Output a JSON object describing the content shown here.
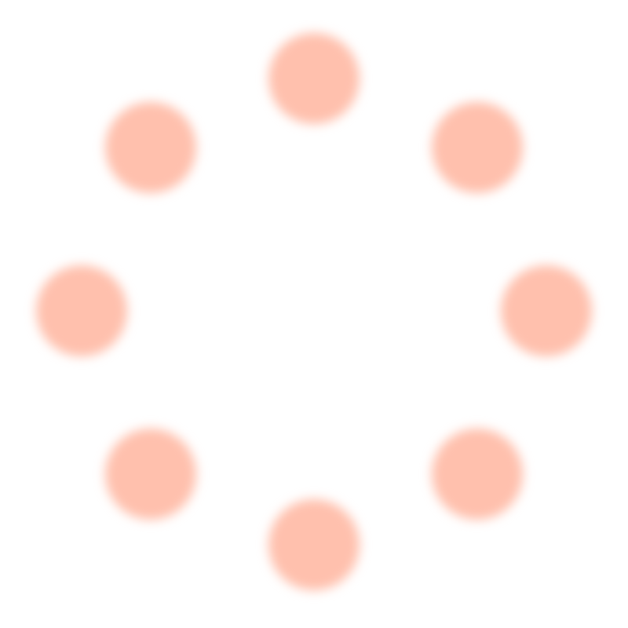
{
  "spinner": {
    "icon": "loading-spinner-icon",
    "dot_count": 8,
    "dot_color": "#ffc0ad"
  }
}
